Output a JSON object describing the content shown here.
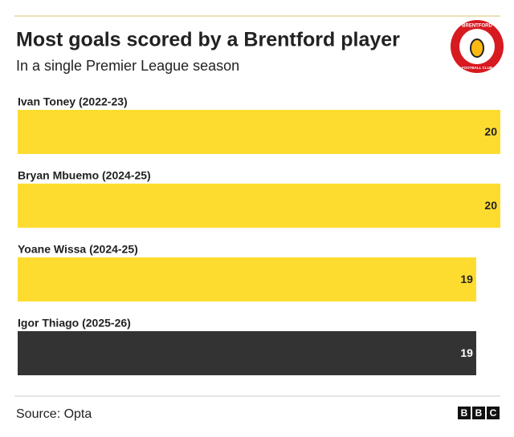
{
  "chart_data": {
    "type": "bar",
    "orientation": "horizontal",
    "title": "Most goals scored by a Brentford player",
    "subtitle": "In a single Premier League season",
    "categories": [
      "Ivan Toney (2022-23)",
      "Bryan Mbuemo (2024-25)",
      "Yoane Wissa (2024-25)",
      "Igor Thiago (2025-26)"
    ],
    "values": [
      20,
      20,
      19,
      19
    ],
    "colors": [
      "#fddc2f",
      "#fddc2f",
      "#fddc2f",
      "#333333"
    ],
    "xlim": [
      0,
      20
    ],
    "source": "Source: Opta",
    "badge": {
      "top": "BRENTFORD",
      "bottom": "FOOTBALL CLUB"
    },
    "brand": [
      "B",
      "B",
      "C"
    ]
  }
}
